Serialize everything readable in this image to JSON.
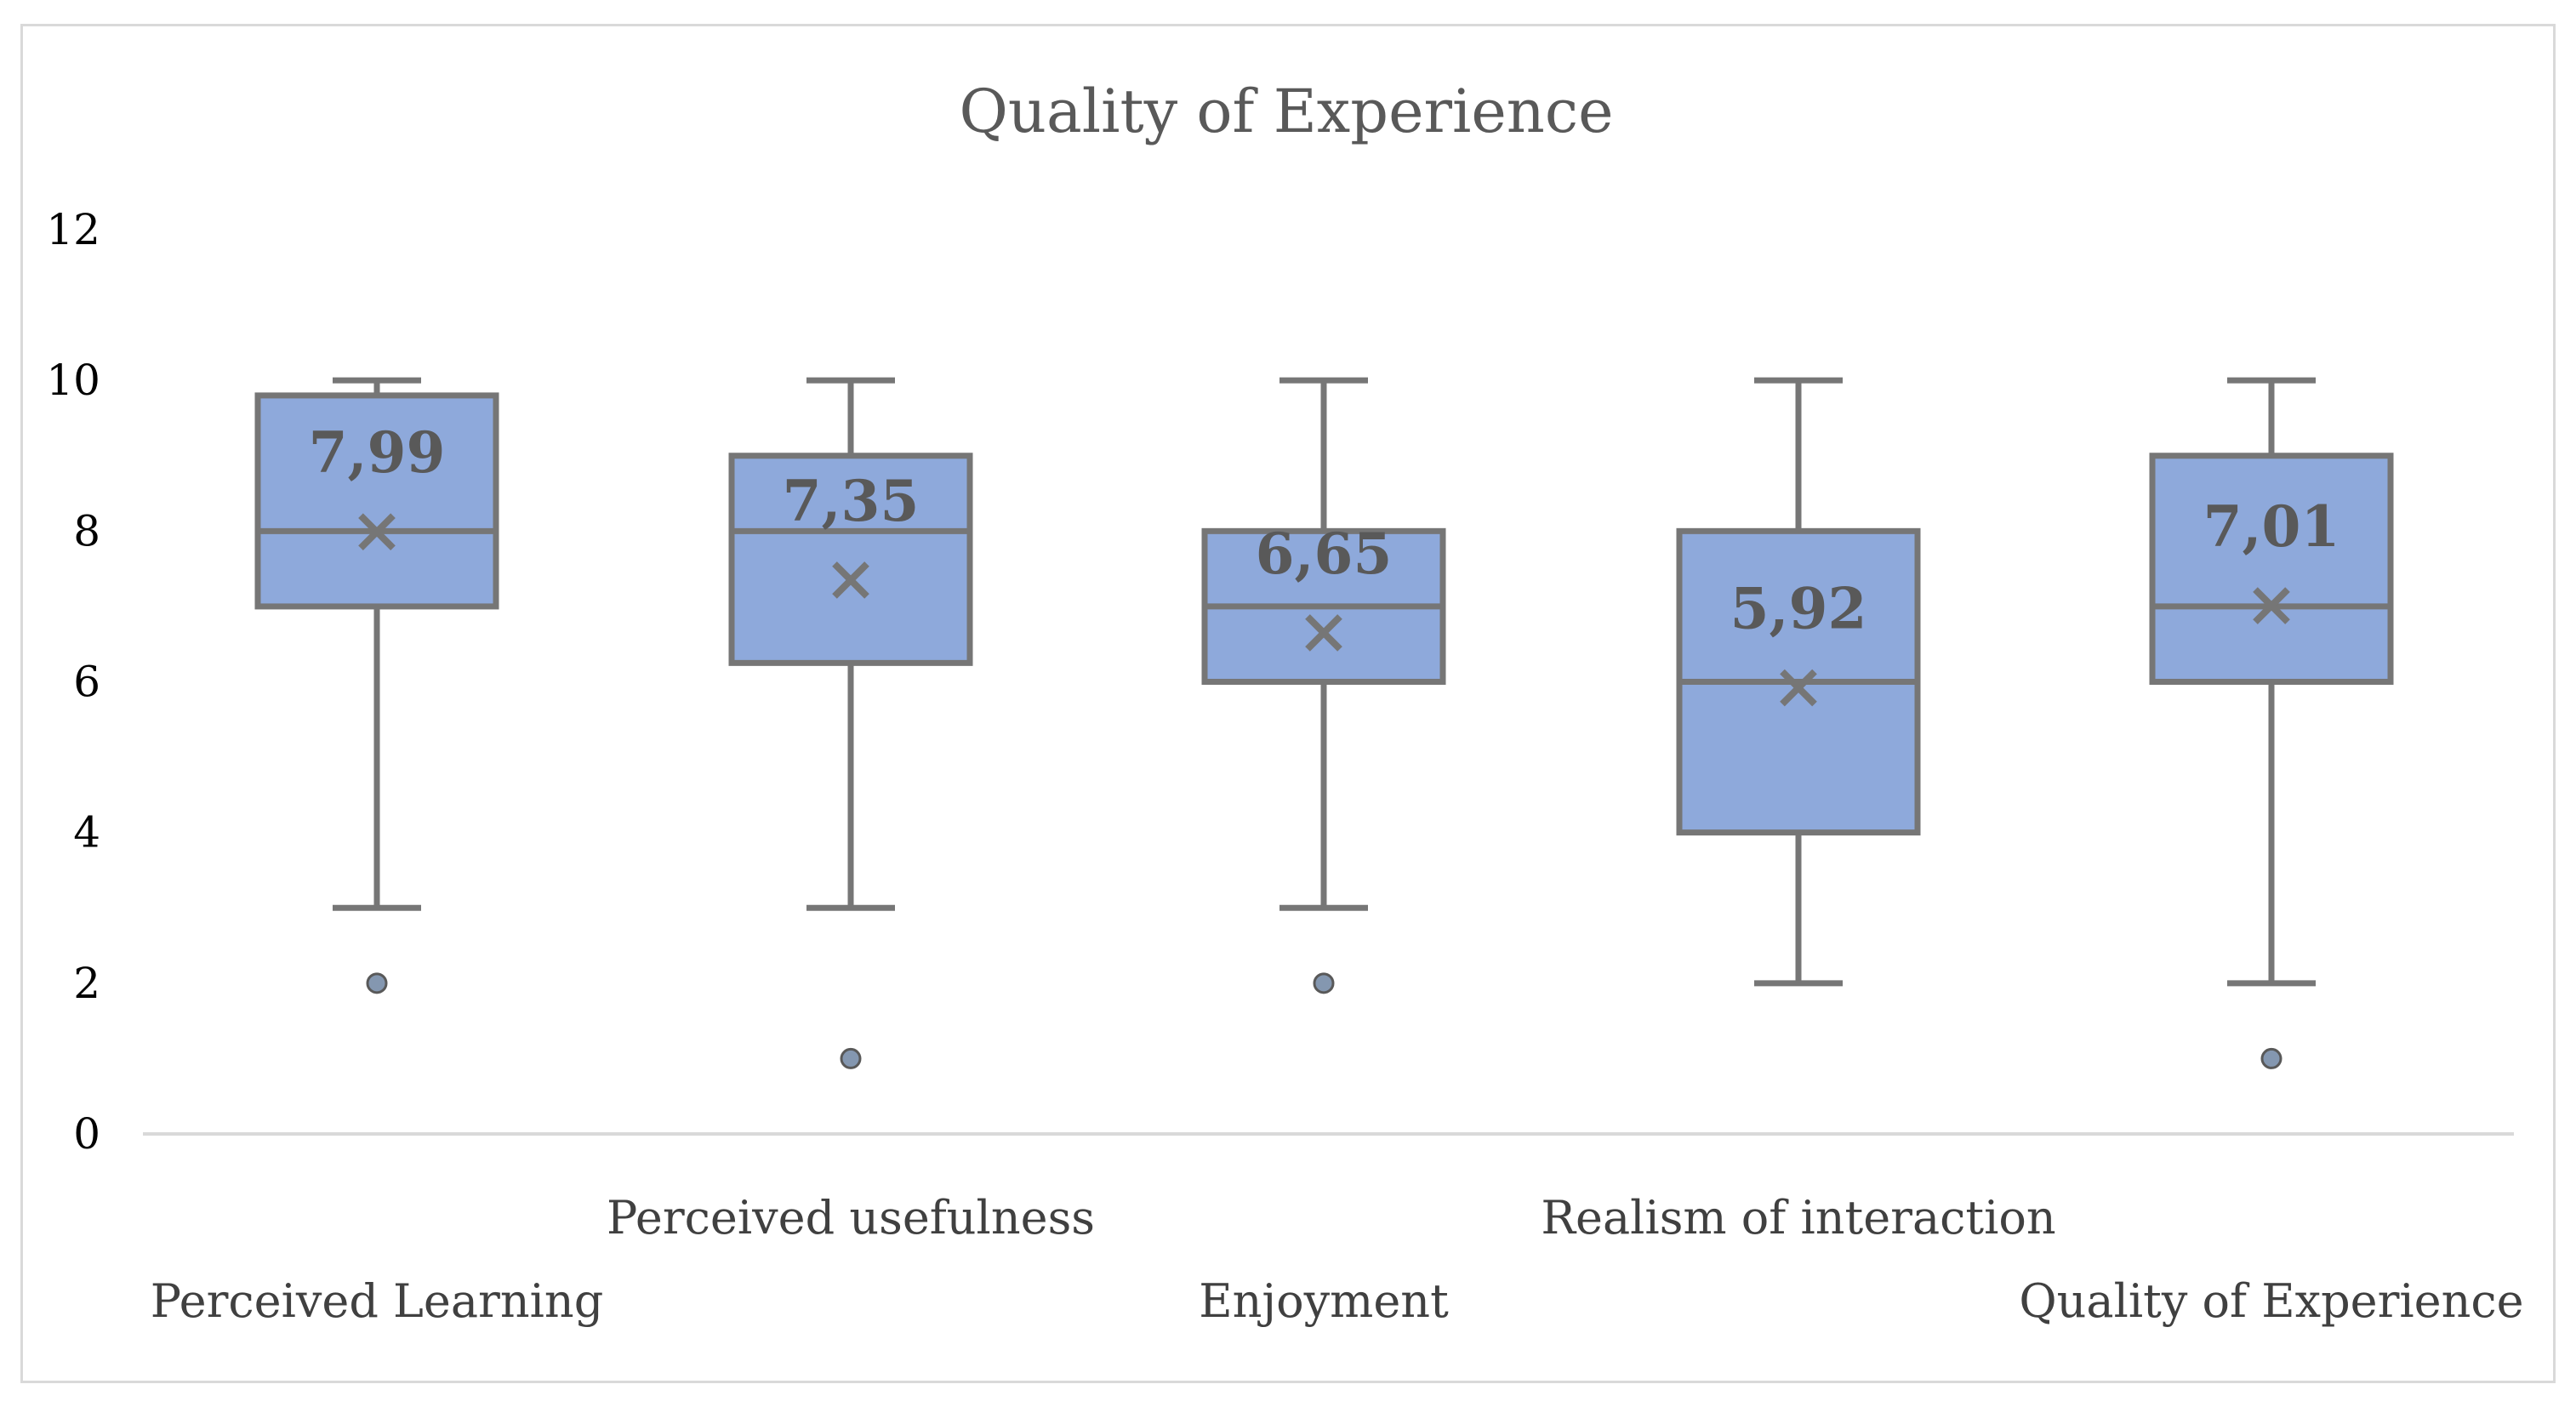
{
  "chart_data": {
    "type": "boxplot",
    "title": "Quality of Experience",
    "xlabel": "",
    "ylabel": "",
    "ylim": [
      0,
      12
    ],
    "yticks": [
      "0",
      "2",
      "4",
      "6",
      "8",
      "10",
      "12"
    ],
    "grid": false,
    "legend": "none",
    "colors": {
      "box_fill": "#8EA9DB",
      "box_stroke": "#767676",
      "outlier": "#8497B0",
      "axis": "#d9d9d9"
    },
    "categories": [
      "Perceived Learning",
      "Perceived usefulness",
      "Enjoyment",
      "Realism of interaction",
      "Quality of Experience"
    ],
    "boxes": [
      {
        "category": "Perceived Learning",
        "min": 3,
        "q1": 7,
        "median": 8,
        "q3": 9.8,
        "max": 10,
        "mean": 7.99,
        "mean_label": "7,99",
        "outliers": [
          2
        ]
      },
      {
        "category": "Perceived usefulness",
        "min": 3,
        "q1": 6.25,
        "median": 8,
        "q3": 9,
        "max": 10,
        "mean": 7.35,
        "mean_label": "7,35",
        "outliers": [
          1
        ]
      },
      {
        "category": "Enjoyment",
        "min": 3,
        "q1": 6,
        "median": 7,
        "q3": 8,
        "max": 10,
        "mean": 6.65,
        "mean_label": "6,65",
        "outliers": [
          2
        ]
      },
      {
        "category": "Realism of interaction",
        "min": 2,
        "q1": 4,
        "median": 6,
        "q3": 8,
        "max": 10,
        "mean": 5.92,
        "mean_label": "5,92",
        "outliers": []
      },
      {
        "category": "Quality of Experience",
        "min": 2,
        "q1": 6,
        "median": 7,
        "q3": 9,
        "max": 10,
        "mean": 7.01,
        "mean_label": "7,01",
        "outliers": [
          1
        ]
      }
    ]
  }
}
